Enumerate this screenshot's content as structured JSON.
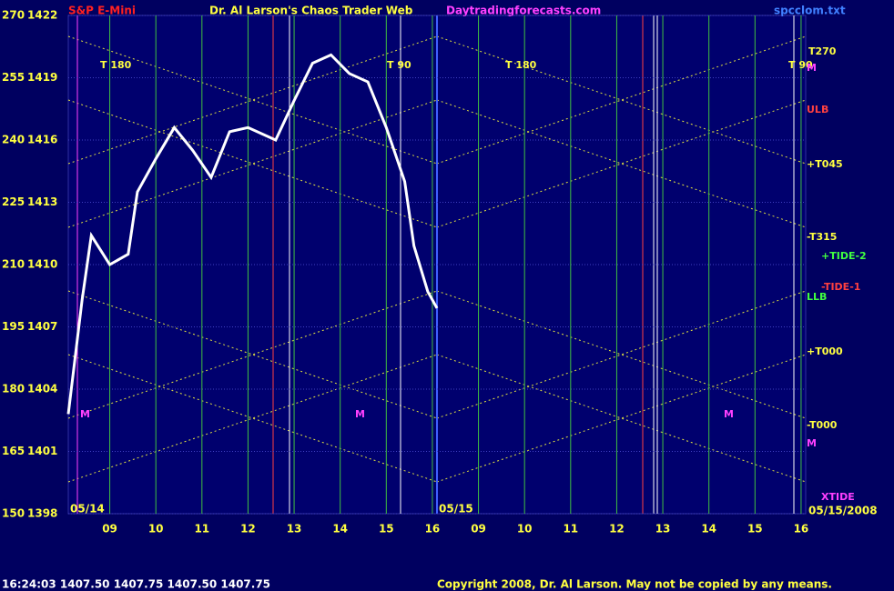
{
  "chart_data": {
    "type": "line",
    "title": "Dr. Al Larson's Chaos Trader Web",
    "symbol": "S&P E-Mini",
    "site": "Daytradingforecasts.com",
    "file": "spcclom.txt",
    "footer_quote": "16:24:03  1407.50  1407.75  1407.50  1407.75",
    "copyright": "Copyright 2008, Dr. Al Larson. May not be copied by any means.",
    "day_labels": [
      "05/14",
      "05/15",
      "05/15/2008"
    ],
    "annotations": [
      "T 180",
      "T 90",
      "T 180",
      "T 90",
      "T270",
      "ULB",
      "+T045",
      "-T315",
      "+TIDE-2",
      "-TIDE-1",
      "LLB",
      "+T000",
      "-T000",
      "XTIDE",
      "M",
      "M",
      "M",
      "M",
      "M"
    ],
    "ylim": [
      1398,
      1422
    ],
    "yticks": [
      1398,
      1401,
      1404,
      1407,
      1410,
      1413,
      1416,
      1419,
      1422
    ],
    "y2lim": [
      150,
      270
    ],
    "y2ticks": [
      150,
      165,
      180,
      195,
      210,
      225,
      240,
      255,
      270
    ],
    "xlim": [
      8.1,
      24.1
    ],
    "xticks": [
      {
        "value": 9,
        "label": "09"
      },
      10,
      11,
      12,
      13,
      14,
      15,
      16,
      {
        "value": 17,
        "label": "09"
      },
      {
        "value": 18,
        "label": "10"
      },
      {
        "value": 19,
        "label": "11"
      },
      {
        "value": 20,
        "label": "12"
      },
      {
        "value": 21,
        "label": "13"
      },
      {
        "value": 22,
        "label": "14"
      },
      {
        "value": 23,
        "label": "15"
      },
      {
        "value": 24,
        "label": "16"
      }
    ],
    "grid": true,
    "x": [
      8.1,
      8.4,
      8.6,
      9.0,
      9.4,
      9.6,
      10.0,
      10.4,
      10.8,
      11.2,
      11.6,
      12.0,
      12.6,
      13.0,
      13.4,
      13.8,
      14.2,
      14.6,
      15.0,
      15.4,
      15.6,
      15.9,
      16.1
    ],
    "series": [
      {
        "color": "#ffffff",
        "values": [
          1402.8,
          1408.3,
          1411.4,
          1410.0,
          1410.5,
          1413.5,
          1415.1,
          1416.6,
          1415.5,
          1414.2,
          1416.4,
          1416.6,
          1416.0,
          1417.9,
          1419.7,
          1420.1,
          1419.2,
          1418.8,
          1416.6,
          1414.0,
          1410.9,
          1408.7,
          1407.9
        ]
      }
    ]
  }
}
